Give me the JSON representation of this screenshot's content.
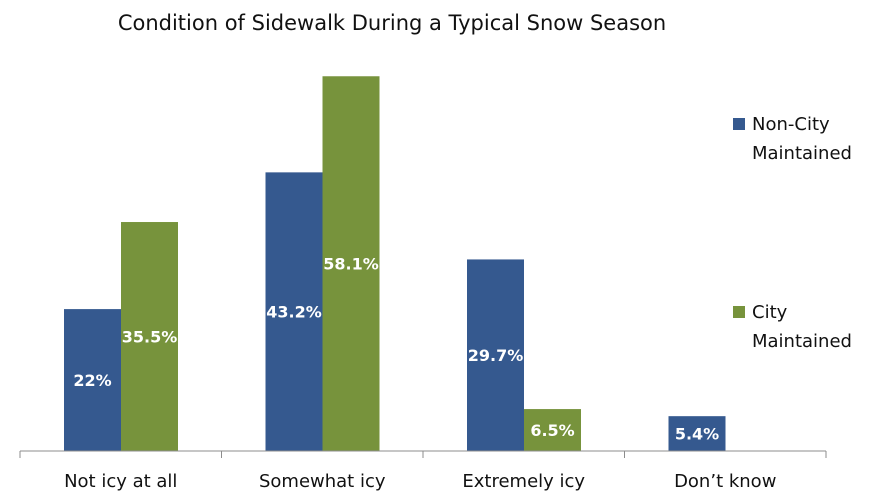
{
  "chart_data": {
    "type": "bar",
    "title": "Condition of Sidewalk During a Typical Snow Season",
    "categories": [
      "Not icy at all",
      "Somewhat icy",
      "Extremely icy",
      "Don’t know"
    ],
    "series": [
      {
        "name": "Non-City Maintained",
        "name_lines": [
          "Non-City",
          "Maintained"
        ],
        "color": "#35598F",
        "values": [
          22,
          43.2,
          29.7,
          5.4
        ],
        "labels": [
          "22%",
          "43.2%",
          "29.7%",
          "5.4%"
        ]
      },
      {
        "name": "City Maintained",
        "name_lines": [
          "City",
          "Maintained"
        ],
        "color": "#77933C",
        "values": [
          35.5,
          58.1,
          6.5,
          null
        ],
        "labels": [
          "35.5%",
          "58.1%",
          "6.5%",
          null
        ]
      }
    ],
    "xlabel": "",
    "ylabel": "",
    "ylim": [
      0,
      60
    ],
    "grid": false,
    "legend": "right",
    "value_axis_visible": false
  }
}
